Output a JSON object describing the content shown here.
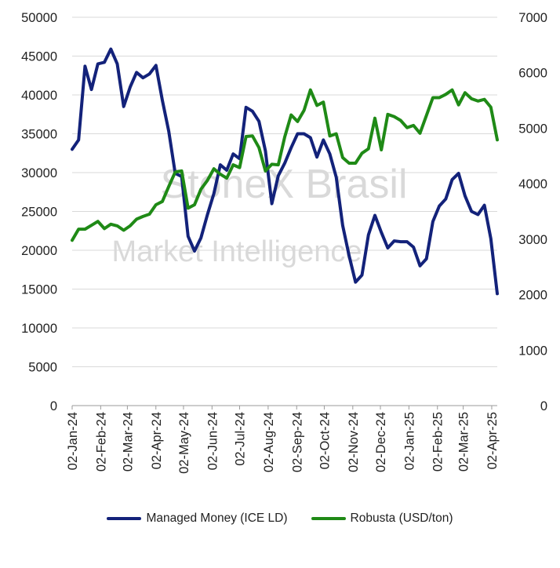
{
  "chart_data": {
    "type": "line",
    "title": "",
    "watermark": {
      "line1": "StoneX Brasil",
      "line2": "Market Intelligence"
    },
    "x": [
      "02-Jan-24",
      "09-Jan-24",
      "16-Jan-24",
      "23-Jan-24",
      "30-Jan-24",
      "06-Feb-24",
      "13-Feb-24",
      "20-Feb-24",
      "27-Feb-24",
      "05-Mar-24",
      "12-Mar-24",
      "19-Mar-24",
      "26-Mar-24",
      "02-Apr-24",
      "09-Apr-24",
      "16-Apr-24",
      "23-Apr-24",
      "30-Apr-24",
      "07-May-24",
      "14-May-24",
      "21-May-24",
      "28-May-24",
      "04-Jun-24",
      "11-Jun-24",
      "18-Jun-24",
      "25-Jun-24",
      "02-Jul-24",
      "09-Jul-24",
      "16-Jul-24",
      "23-Jul-24",
      "30-Jul-24",
      "06-Aug-24",
      "13-Aug-24",
      "20-Aug-24",
      "27-Aug-24",
      "03-Sep-24",
      "10-Sep-24",
      "17-Sep-24",
      "24-Sep-24",
      "01-Oct-24",
      "08-Oct-24",
      "15-Oct-24",
      "22-Oct-24",
      "29-Oct-24",
      "05-Nov-24",
      "12-Nov-24",
      "19-Nov-24",
      "26-Nov-24",
      "03-Dec-24",
      "10-Dec-24",
      "17-Dec-24",
      "24-Dec-24",
      "31-Dec-24",
      "07-Jan-25",
      "14-Jan-25",
      "21-Jan-25",
      "28-Jan-25",
      "04-Feb-25",
      "11-Feb-25",
      "18-Feb-25",
      "25-Feb-25",
      "04-Mar-25",
      "11-Mar-25",
      "18-Mar-25",
      "25-Mar-25",
      "01-Apr-25",
      "08-Apr-25"
    ],
    "x_tick_labels": [
      "02-Jan-24",
      "02-Feb-24",
      "02-Mar-24",
      "02-Apr-24",
      "02-May-24",
      "02-Jun-24",
      "02-Jul-24",
      "02-Aug-24",
      "02-Sep-24",
      "02-Oct-24",
      "02-Nov-24",
      "02-Dec-24",
      "02-Jan-25",
      "02-Feb-25",
      "02-Mar-25",
      "02-Apr-25"
    ],
    "y_left": {
      "ylim": [
        0,
        50000
      ],
      "ticks": [
        "0",
        "5000",
        "10000",
        "15000",
        "20000",
        "25000",
        "30000",
        "35000",
        "40000",
        "45000",
        "50000"
      ]
    },
    "y_right": {
      "ylim": [
        0,
        7000
      ],
      "ticks": [
        "0",
        "1000",
        "2000",
        "3000",
        "4000",
        "5000",
        "6000",
        "7000"
      ]
    },
    "grid": "horizontal",
    "legend_position": "bottom",
    "series": [
      {
        "name": "Managed Money (ICE LD)",
        "axis": "left",
        "color": "#13227a",
        "values": [
          33000,
          34200,
          43700,
          40700,
          44000,
          44200,
          45900,
          44000,
          38500,
          41000,
          42900,
          42200,
          42700,
          43800,
          39300,
          35300,
          29900,
          29500,
          21800,
          19900,
          21600,
          24600,
          27300,
          31000,
          30300,
          32400,
          31800,
          38400,
          37900,
          36600,
          32800,
          26000,
          29600,
          31200,
          33200,
          35000,
          35000,
          34500,
          32000,
          34200,
          32400,
          29400,
          23200,
          19300,
          15900,
          16800,
          22000,
          24500,
          22300,
          20300,
          21200,
          21100,
          21100,
          20400,
          18000,
          18900,
          23700,
          25700,
          26600,
          29100,
          29900,
          27000,
          25000,
          24600,
          25800,
          21500,
          14400
        ]
      },
      {
        "name": "Robusta (USD/ton)",
        "axis": "right",
        "color": "#1f8a16",
        "values": [
          2980,
          3180,
          3180,
          3250,
          3320,
          3190,
          3270,
          3240,
          3160,
          3240,
          3360,
          3410,
          3450,
          3620,
          3680,
          3950,
          4210,
          4230,
          3560,
          3620,
          3900,
          4060,
          4270,
          4170,
          4100,
          4340,
          4290,
          4850,
          4860,
          4650,
          4230,
          4350,
          4340,
          4840,
          5240,
          5120,
          5320,
          5690,
          5410,
          5470,
          4860,
          4900,
          4470,
          4370,
          4370,
          4550,
          4630,
          5180,
          4610,
          5250,
          5210,
          5140,
          5010,
          5050,
          4910,
          5230,
          5550,
          5550,
          5610,
          5690,
          5420,
          5640,
          5530,
          5490,
          5520,
          5380,
          4790
        ]
      }
    ]
  }
}
